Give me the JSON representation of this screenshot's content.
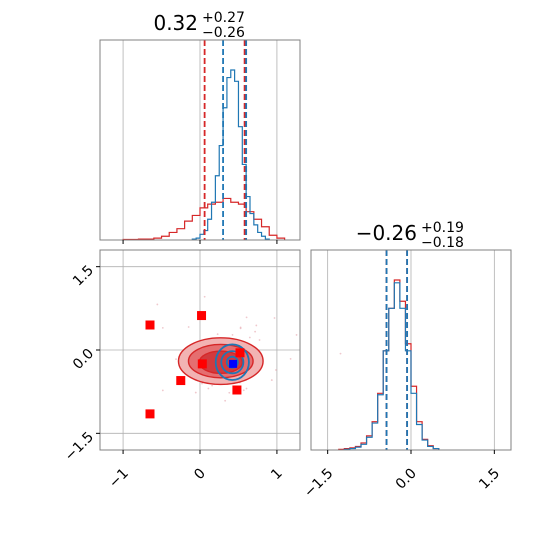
{
  "chart_data": {
    "type": "corner",
    "colors": {
      "wide": "#d62728",
      "narrow": "#1f77b4",
      "truth": "#ff0000",
      "best": "#0000ff",
      "grid": "#b0b0b0",
      "frame": "#808080"
    },
    "panels": [
      {
        "id": "hist-x",
        "kind": "histogram",
        "title": {
          "median": "0.32",
          "plus": "+0.27",
          "minus": "−0.26"
        },
        "xlim": [
          -1.3,
          1.3
        ],
        "xticks": [
          -1,
          0,
          1
        ],
        "xtick_labels_shown": false,
        "series": [
          {
            "name": "",
            "color_key": "wide",
            "bins": [
              -1.0,
              -0.9,
              -0.8,
              -0.7,
              -0.6,
              -0.5,
              -0.4,
              -0.3,
              -0.2,
              -0.1,
              0.0,
              0.1,
              0.2,
              0.3,
              0.4,
              0.5,
              0.6,
              0.7,
              0.8,
              0.9,
              1.0,
              1.1
            ],
            "counts": [
              0.5,
              0.5,
              1,
              1,
              2,
              4,
              8,
              12,
              20,
              26,
              34,
              38,
              40,
              44,
              40,
              38,
              30,
              22,
              14,
              5,
              2
            ]
          },
          {
            "name": "",
            "color_key": "narrow",
            "bins": [
              -0.1,
              -0.05,
              0.0,
              0.05,
              0.1,
              0.15,
              0.2,
              0.25,
              0.3,
              0.35,
              0.4,
              0.45,
              0.5,
              0.55,
              0.6,
              0.65,
              0.7,
              0.75,
              0.8,
              0.85,
              0.9
            ],
            "counts": [
              1,
              2,
              6,
              10,
              22,
              40,
              68,
              100,
              140,
              172,
              180,
              168,
              120,
              80,
              46,
              28,
              16,
              8,
              4,
              1
            ]
          }
        ],
        "vlines": [
          {
            "x": 0.06,
            "color_key": "wide"
          },
          {
            "x": 0.58,
            "color_key": "wide"
          },
          {
            "x": 0.3,
            "color_key": "narrow"
          },
          {
            "x": 0.6,
            "color_key": "narrow"
          }
        ]
      },
      {
        "id": "scatter-xy",
        "kind": "2d-contour",
        "xlim": [
          -1.3,
          1.3
        ],
        "ylim": [
          -1.8,
          1.8
        ],
        "xticks": [
          -1,
          0,
          1
        ],
        "xtick_labels": [
          "−1",
          "0",
          "1"
        ],
        "yticks": [
          -1.5,
          0.0,
          1.5
        ],
        "ytick_labels": [
          "−1.5",
          "0.0",
          "1.5"
        ],
        "truth_points": [
          {
            "x": -0.65,
            "y": 0.45
          },
          {
            "x": 0.02,
            "y": 0.62
          },
          {
            "x": -0.25,
            "y": -0.55
          },
          {
            "x": -0.65,
            "y": -1.15
          },
          {
            "x": 0.48,
            "y": -0.72
          },
          {
            "x": 0.03,
            "y": -0.25
          },
          {
            "x": 0.52,
            "y": -0.05
          }
        ],
        "best_point": {
          "x": 0.43,
          "y": -0.25
        },
        "wide_contours": [
          {
            "cx": 0.27,
            "cy": -0.2,
            "rx": 0.55,
            "ry": 0.42,
            "level": "outer"
          },
          {
            "cx": 0.27,
            "cy": -0.2,
            "rx": 0.42,
            "ry": 0.3,
            "level": "mid"
          },
          {
            "cx": 0.27,
            "cy": -0.22,
            "rx": 0.28,
            "ry": 0.2,
            "level": "inner"
          }
        ],
        "narrow_contours": [
          {
            "cx": 0.42,
            "cy": -0.22,
            "rx": 0.36,
            "ry": 0.32
          },
          {
            "cx": 0.42,
            "cy": -0.22,
            "rx": 0.24,
            "ry": 0.2
          },
          {
            "cx": 0.42,
            "cy": -0.22,
            "rx": 0.12,
            "ry": 0.1
          }
        ]
      },
      {
        "id": "hist-y",
        "kind": "histogram",
        "title": {
          "median": "−0.26",
          "plus": "+0.19",
          "minus": "−0.18"
        },
        "xlim": [
          -1.8,
          1.8
        ],
        "xticks": [
          -1.5,
          0.0,
          1.5
        ],
        "xtick_labels": [
          "−1.5",
          "0.0",
          "1.5"
        ],
        "series": [
          {
            "name": "",
            "color_key": "wide",
            "bins": [
              -1.3,
              -1.2,
              -1.1,
              -1.0,
              -0.9,
              -0.8,
              -0.7,
              -0.6,
              -0.5,
              -0.4,
              -0.3,
              -0.2,
              -0.1,
              0.0,
              0.1,
              0.2,
              0.3,
              0.4,
              0.5
            ],
            "counts": [
              1,
              2,
              3,
              5,
              10,
              20,
              40,
              80,
              140,
              200,
              240,
              210,
              150,
              90,
              40,
              15,
              6,
              2
            ]
          },
          {
            "name": "",
            "color_key": "narrow",
            "bins": [
              -1.2,
              -1.1,
              -1.0,
              -0.9,
              -0.8,
              -0.7,
              -0.6,
              -0.5,
              -0.4,
              -0.3,
              -0.2,
              -0.1,
              0.0,
              0.1,
              0.2,
              0.3,
              0.4,
              0.5
            ],
            "counts": [
              1,
              2,
              4,
              8,
              18,
              38,
              78,
              140,
              200,
              236,
              200,
              140,
              80,
              36,
              14,
              5,
              2
            ]
          }
        ],
        "vlines": [
          {
            "x": -0.44,
            "color_key": "wide"
          },
          {
            "x": -0.07,
            "color_key": "wide"
          },
          {
            "x": -0.44,
            "color_key": "narrow"
          },
          {
            "x": -0.07,
            "color_key": "narrow"
          }
        ]
      }
    ]
  }
}
